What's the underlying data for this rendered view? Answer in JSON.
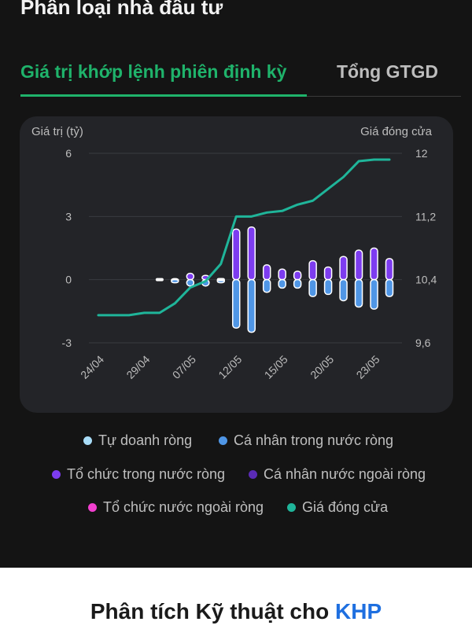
{
  "section": {
    "title": "Phân loại nhà đầu tư"
  },
  "tabs": [
    {
      "label": "Giá trị khớp lệnh phiên định kỳ",
      "active": true
    },
    {
      "label": "Tổng GTGD",
      "active": false
    }
  ],
  "chart_data": {
    "type": "bar",
    "left_axis_label": "Giá trị (tỷ)",
    "right_axis_label": "Giá đóng cửa",
    "left_ticks": [
      "6",
      "3",
      "0",
      "-3"
    ],
    "right_ticks": [
      "12",
      "11,2",
      "10,4",
      "9,6"
    ],
    "ylim_left": [
      -3,
      6
    ],
    "ylim_right": [
      9.6,
      12
    ],
    "grid": true,
    "x_tick_labels": [
      {
        "index": 0,
        "label": "24/04"
      },
      {
        "index": 3,
        "label": "29/04"
      },
      {
        "index": 6,
        "label": "07/05"
      },
      {
        "index": 9,
        "label": "12/05"
      },
      {
        "index": 12,
        "label": "15/05"
      },
      {
        "index": 15,
        "label": "20/05"
      },
      {
        "index": 18,
        "label": "23/05"
      }
    ],
    "n_sessions": 20,
    "series": [
      {
        "name": "Tự doanh ròng",
        "color": "#a8dcf7",
        "kind": "bar",
        "values": [
          0,
          0,
          0,
          0,
          0,
          0,
          0,
          0,
          0,
          0,
          0,
          0,
          0,
          0,
          0,
          0,
          0,
          0,
          0,
          0
        ]
      },
      {
        "name": "Cá nhân trong nước ròng",
        "color": "#4f96e6",
        "kind": "bar",
        "values": [
          0,
          0,
          0,
          0,
          0,
          -0.05,
          -0.3,
          -0.3,
          -0.05,
          -2.3,
          -2.5,
          -0.6,
          -0.4,
          -0.4,
          -0.8,
          -0.7,
          -1.0,
          -1.3,
          -1.4,
          -0.8
        ]
      },
      {
        "name": "Tổ chức trong nước ròng",
        "color": "#7d3cf0",
        "kind": "bar",
        "values": [
          0,
          0,
          0,
          0,
          0,
          0.05,
          0.3,
          0.2,
          0.05,
          2.4,
          2.5,
          0.7,
          0.5,
          0.4,
          0.9,
          0.6,
          1.1,
          1.4,
          1.5,
          1.0
        ]
      },
      {
        "name": "Cá nhân nước ngoài ròng",
        "color": "#5a2bb5",
        "kind": "bar",
        "values": [
          0,
          0,
          0,
          0,
          0,
          0,
          0,
          0,
          0,
          0,
          0,
          0,
          0,
          0,
          0,
          0,
          0,
          0,
          0,
          0
        ]
      },
      {
        "name": "Tổ chức nước ngoài ròng",
        "color": "#f23fcf",
        "kind": "bar",
        "values": [
          0,
          0,
          0,
          0,
          0,
          0,
          0,
          0,
          0,
          0,
          0,
          0,
          0,
          0,
          0,
          0,
          0,
          0,
          0,
          0
        ]
      },
      {
        "name": "Giá đóng cửa",
        "color": "#1fb59a",
        "kind": "line",
        "x": [
          0,
          1,
          2,
          3,
          4,
          5,
          6,
          7,
          8,
          9,
          10,
          11,
          12,
          13,
          14,
          15,
          16,
          17,
          18,
          19
        ],
        "values": [
          9.95,
          9.95,
          9.95,
          9.98,
          9.98,
          10.1,
          10.3,
          10.38,
          10.6,
          11.2,
          11.2,
          11.25,
          11.27,
          11.35,
          11.4,
          11.55,
          11.7,
          11.9,
          11.92,
          11.92
        ]
      }
    ]
  },
  "bottom": {
    "title_prefix": "Phân tích Kỹ thuật cho",
    "ticker": "KHP"
  }
}
